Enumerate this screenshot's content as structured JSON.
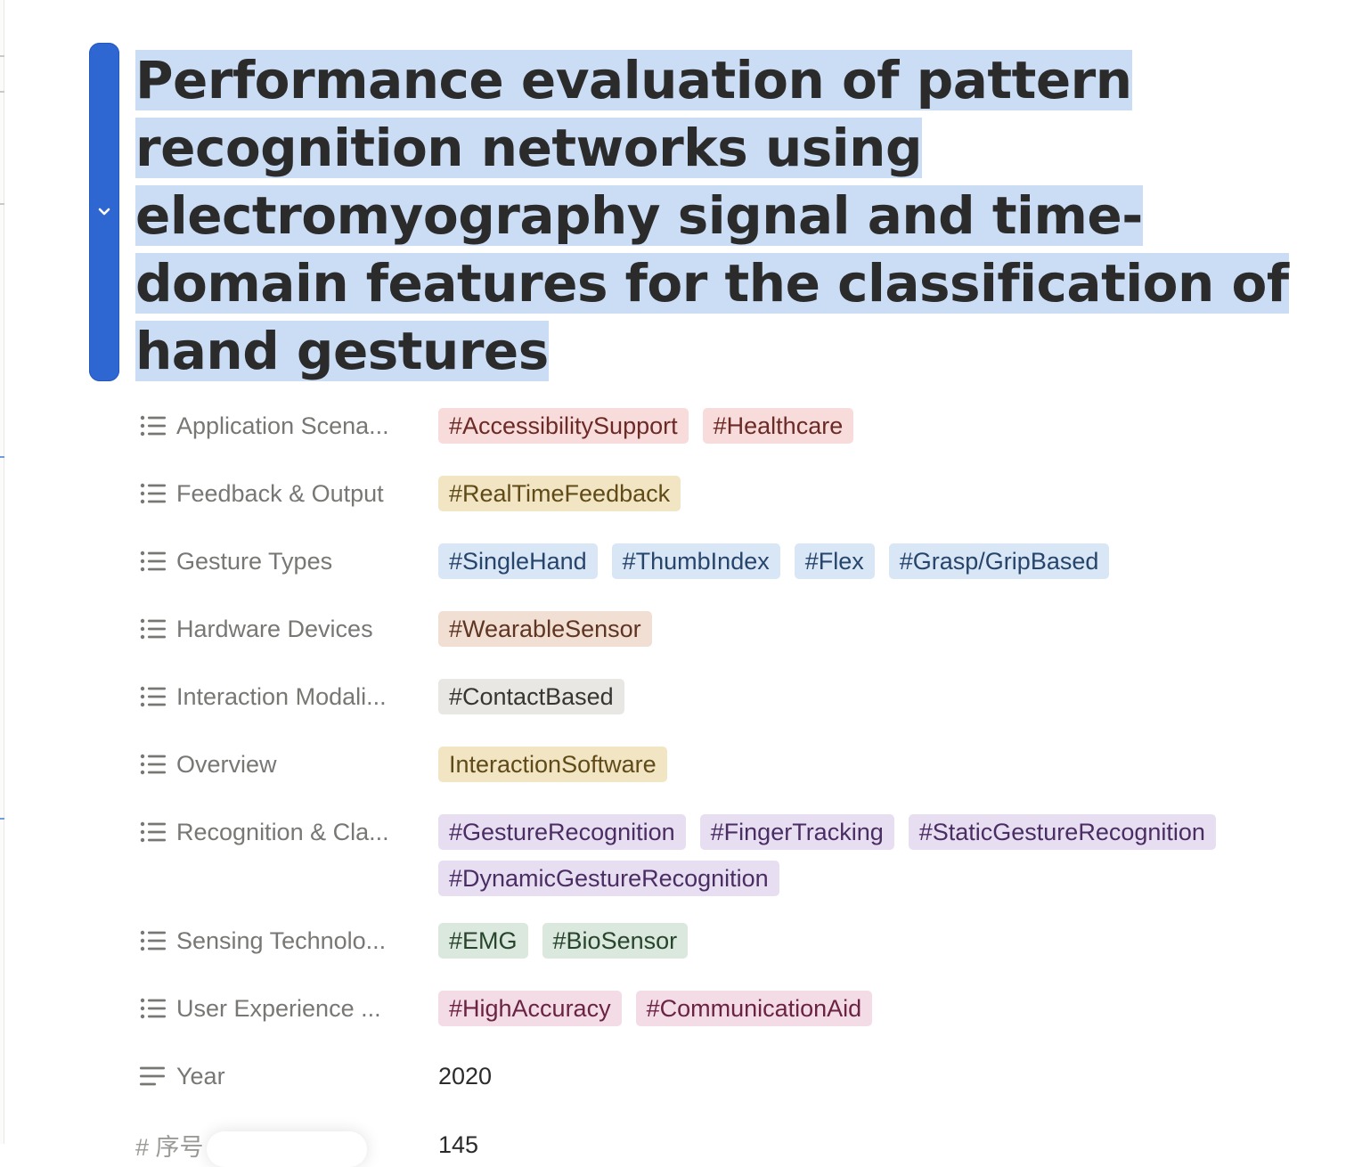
{
  "page": {
    "title": "Performance evaluation of pattern recognition networks using electromyography signal and time-domain features for the classification of hand gestures",
    "selection_color": "#cbdcf5",
    "handle_color": "#2f67d2"
  },
  "properties": [
    {
      "label": "Application Scena...",
      "icon": "list-icon",
      "tags": [
        {
          "text": "#AccessibilitySupport",
          "bg": "#f8dcdb",
          "fg": "#6b2a26"
        },
        {
          "text": "#Healthcare",
          "bg": "#f8dcdb",
          "fg": "#6b2a26"
        }
      ]
    },
    {
      "label": "Feedback & Output",
      "icon": "list-icon",
      "tags": [
        {
          "text": "#RealTimeFeedback",
          "bg": "#f1e5c3",
          "fg": "#5f4a18"
        }
      ]
    },
    {
      "label": "Gesture Types",
      "icon": "list-icon",
      "tags": [
        {
          "text": "#SingleHand",
          "bg": "#d8e6f6",
          "fg": "#27456b"
        },
        {
          "text": "#ThumbIndex",
          "bg": "#d8e6f6",
          "fg": "#27456b"
        },
        {
          "text": "#Flex",
          "bg": "#d8e6f6",
          "fg": "#27456b"
        },
        {
          "text": "#Grasp/GripBased",
          "bg": "#d8e6f6",
          "fg": "#27456b"
        }
      ]
    },
    {
      "label": "Hardware Devices",
      "icon": "list-icon",
      "tags": [
        {
          "text": "#WearableSensor",
          "bg": "#f2dfd4",
          "fg": "#5e3522"
        }
      ]
    },
    {
      "label": "Interaction Modali...",
      "icon": "list-icon",
      "tags": [
        {
          "text": "#ContactBased",
          "bg": "#e8e7e4",
          "fg": "#37352f"
        }
      ]
    },
    {
      "label": "Overview",
      "icon": "list-icon",
      "tags": [
        {
          "text": "InteractionSoftware",
          "bg": "#f1e5c3",
          "fg": "#5f4a18"
        }
      ]
    },
    {
      "label": "Recognition & Cla...",
      "icon": "list-icon",
      "tags": [
        {
          "text": "#GestureRecognition",
          "bg": "#e8def1",
          "fg": "#4a2e63"
        },
        {
          "text": "#FingerTracking",
          "bg": "#e8def1",
          "fg": "#4a2e63"
        },
        {
          "text": "#StaticGestureRecognition",
          "bg": "#e8def1",
          "fg": "#4a2e63"
        },
        {
          "text": "#DynamicGestureRecognition",
          "bg": "#e8def1",
          "fg": "#4a2e63"
        }
      ]
    },
    {
      "label": "Sensing Technolo...",
      "icon": "list-icon",
      "tags": [
        {
          "text": "#EMG",
          "bg": "#dbe8de",
          "fg": "#27452d"
        },
        {
          "text": "#BioSensor",
          "bg": "#dbe8de",
          "fg": "#27452d"
        }
      ]
    },
    {
      "label": "User Experience ...",
      "icon": "list-icon",
      "tags": [
        {
          "text": "#HighAccuracy",
          "bg": "#f4dce6",
          "fg": "#6a2342"
        },
        {
          "text": "#CommunicationAid",
          "bg": "#f4dce6",
          "fg": "#6a2342"
        }
      ]
    },
    {
      "label": "Year",
      "icon": "text-lines-icon",
      "value": "2020"
    }
  ],
  "partial_row": {
    "label": "# 序号",
    "value": "145"
  }
}
